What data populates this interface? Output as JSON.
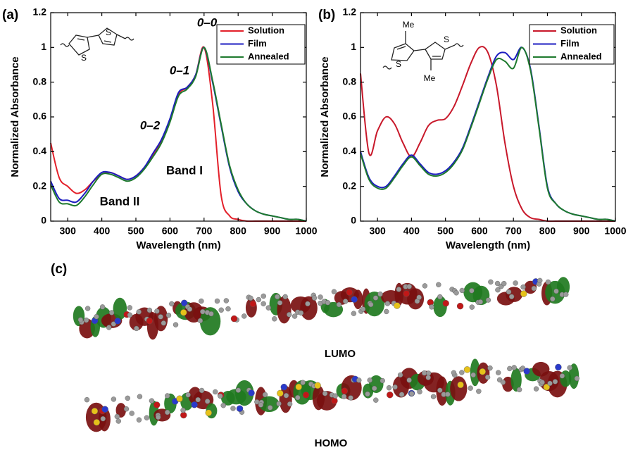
{
  "chart_data": [
    {
      "type": "line",
      "panel_label": "(a)",
      "xlabel": "Wavelength (nm)",
      "ylabel": "Normalized Absorbance",
      "x": [
        250,
        275,
        300,
        325,
        350,
        375,
        400,
        425,
        450,
        475,
        500,
        525,
        550,
        575,
        600,
        625,
        650,
        675,
        700,
        725,
        750,
        775,
        800,
        825,
        850,
        875,
        900,
        925,
        950,
        975,
        1000
      ],
      "series": [
        {
          "name": "Solution",
          "color": "#e3202a",
          "values": [
            0.45,
            0.25,
            0.2,
            0.16,
            0.18,
            0.23,
            0.27,
            0.28,
            0.26,
            0.24,
            0.26,
            0.31,
            0.38,
            0.46,
            0.58,
            0.73,
            0.77,
            0.84,
            1.0,
            0.68,
            0.15,
            0.03,
            0.01,
            0,
            0,
            0,
            0,
            0,
            0,
            0,
            0
          ]
        },
        {
          "name": "Film",
          "color": "#1c1cc0",
          "values": [
            0.23,
            0.13,
            0.12,
            0.11,
            0.16,
            0.23,
            0.28,
            0.28,
            0.26,
            0.24,
            0.26,
            0.31,
            0.39,
            0.47,
            0.59,
            0.74,
            0.77,
            0.84,
            1.0,
            0.8,
            0.55,
            0.31,
            0.17,
            0.1,
            0.06,
            0.04,
            0.03,
            0.02,
            0.01,
            0.01,
            0
          ]
        },
        {
          "name": "Annealed",
          "color": "#1e7a2e",
          "values": [
            0.21,
            0.11,
            0.1,
            0.09,
            0.14,
            0.21,
            0.27,
            0.27,
            0.25,
            0.23,
            0.25,
            0.3,
            0.37,
            0.45,
            0.57,
            0.72,
            0.76,
            0.83,
            1.0,
            0.81,
            0.56,
            0.32,
            0.18,
            0.1,
            0.06,
            0.04,
            0.03,
            0.02,
            0.01,
            0.01,
            0
          ]
        }
      ],
      "xlim": [
        250,
        1000
      ],
      "xticks": [
        300,
        400,
        500,
        600,
        700,
        800,
        900,
        1000
      ],
      "ylim": [
        0,
        1.2
      ],
      "yticks": [
        0,
        0.2,
        0.4,
        0.6,
        0.8,
        1,
        1.2
      ],
      "legend": "upper right",
      "annotations": [
        "0–0",
        "0–1",
        "0–2",
        "Band I",
        "Band II"
      ],
      "structure_labels": [
        "S",
        "S"
      ]
    },
    {
      "type": "line",
      "panel_label": "(b)",
      "xlabel": "Wavelength (nm)",
      "ylabel": "Normalized Absorbance",
      "x": [
        250,
        275,
        300,
        325,
        350,
        375,
        400,
        425,
        450,
        475,
        500,
        525,
        550,
        575,
        600,
        625,
        650,
        675,
        700,
        725,
        750,
        775,
        800,
        825,
        850,
        875,
        900,
        925,
        950,
        975,
        1000
      ],
      "series": [
        {
          "name": "Solution",
          "color": "#c8182a",
          "values": [
            0.85,
            0.39,
            0.52,
            0.6,
            0.56,
            0.45,
            0.37,
            0.45,
            0.55,
            0.58,
            0.59,
            0.66,
            0.78,
            0.91,
            1.0,
            0.97,
            0.78,
            0.45,
            0.2,
            0.07,
            0.02,
            0.01,
            0,
            0,
            0,
            0,
            0,
            0,
            0,
            0,
            0
          ]
        },
        {
          "name": "Film",
          "color": "#1c1cc0",
          "values": [
            0.4,
            0.25,
            0.2,
            0.2,
            0.26,
            0.33,
            0.38,
            0.33,
            0.28,
            0.27,
            0.29,
            0.34,
            0.42,
            0.55,
            0.69,
            0.83,
            0.95,
            0.97,
            0.93,
            1.0,
            0.88,
            0.55,
            0.2,
            0.1,
            0.06,
            0.04,
            0.03,
            0.02,
            0.01,
            0.01,
            0
          ]
        },
        {
          "name": "Annealed",
          "color": "#1e7a2e",
          "values": [
            0.39,
            0.24,
            0.19,
            0.19,
            0.25,
            0.32,
            0.37,
            0.32,
            0.27,
            0.26,
            0.28,
            0.33,
            0.41,
            0.54,
            0.68,
            0.82,
            0.93,
            0.92,
            0.88,
            1.0,
            0.87,
            0.54,
            0.19,
            0.1,
            0.06,
            0.04,
            0.03,
            0.02,
            0.01,
            0.01,
            0
          ]
        }
      ],
      "xlim": [
        250,
        1000
      ],
      "xticks": [
        300,
        400,
        500,
        600,
        700,
        800,
        900,
        1000
      ],
      "ylim": [
        0,
        1.2
      ],
      "yticks": [
        0,
        0.2,
        0.4,
        0.6,
        0.8,
        1,
        1.2
      ],
      "legend": "upper right",
      "structure_labels": [
        "Me",
        "Me",
        "S",
        "S"
      ]
    }
  ],
  "panel_c": {
    "panel_label": "(c)",
    "orbitals": [
      "LUMO",
      "HOMO"
    ]
  }
}
